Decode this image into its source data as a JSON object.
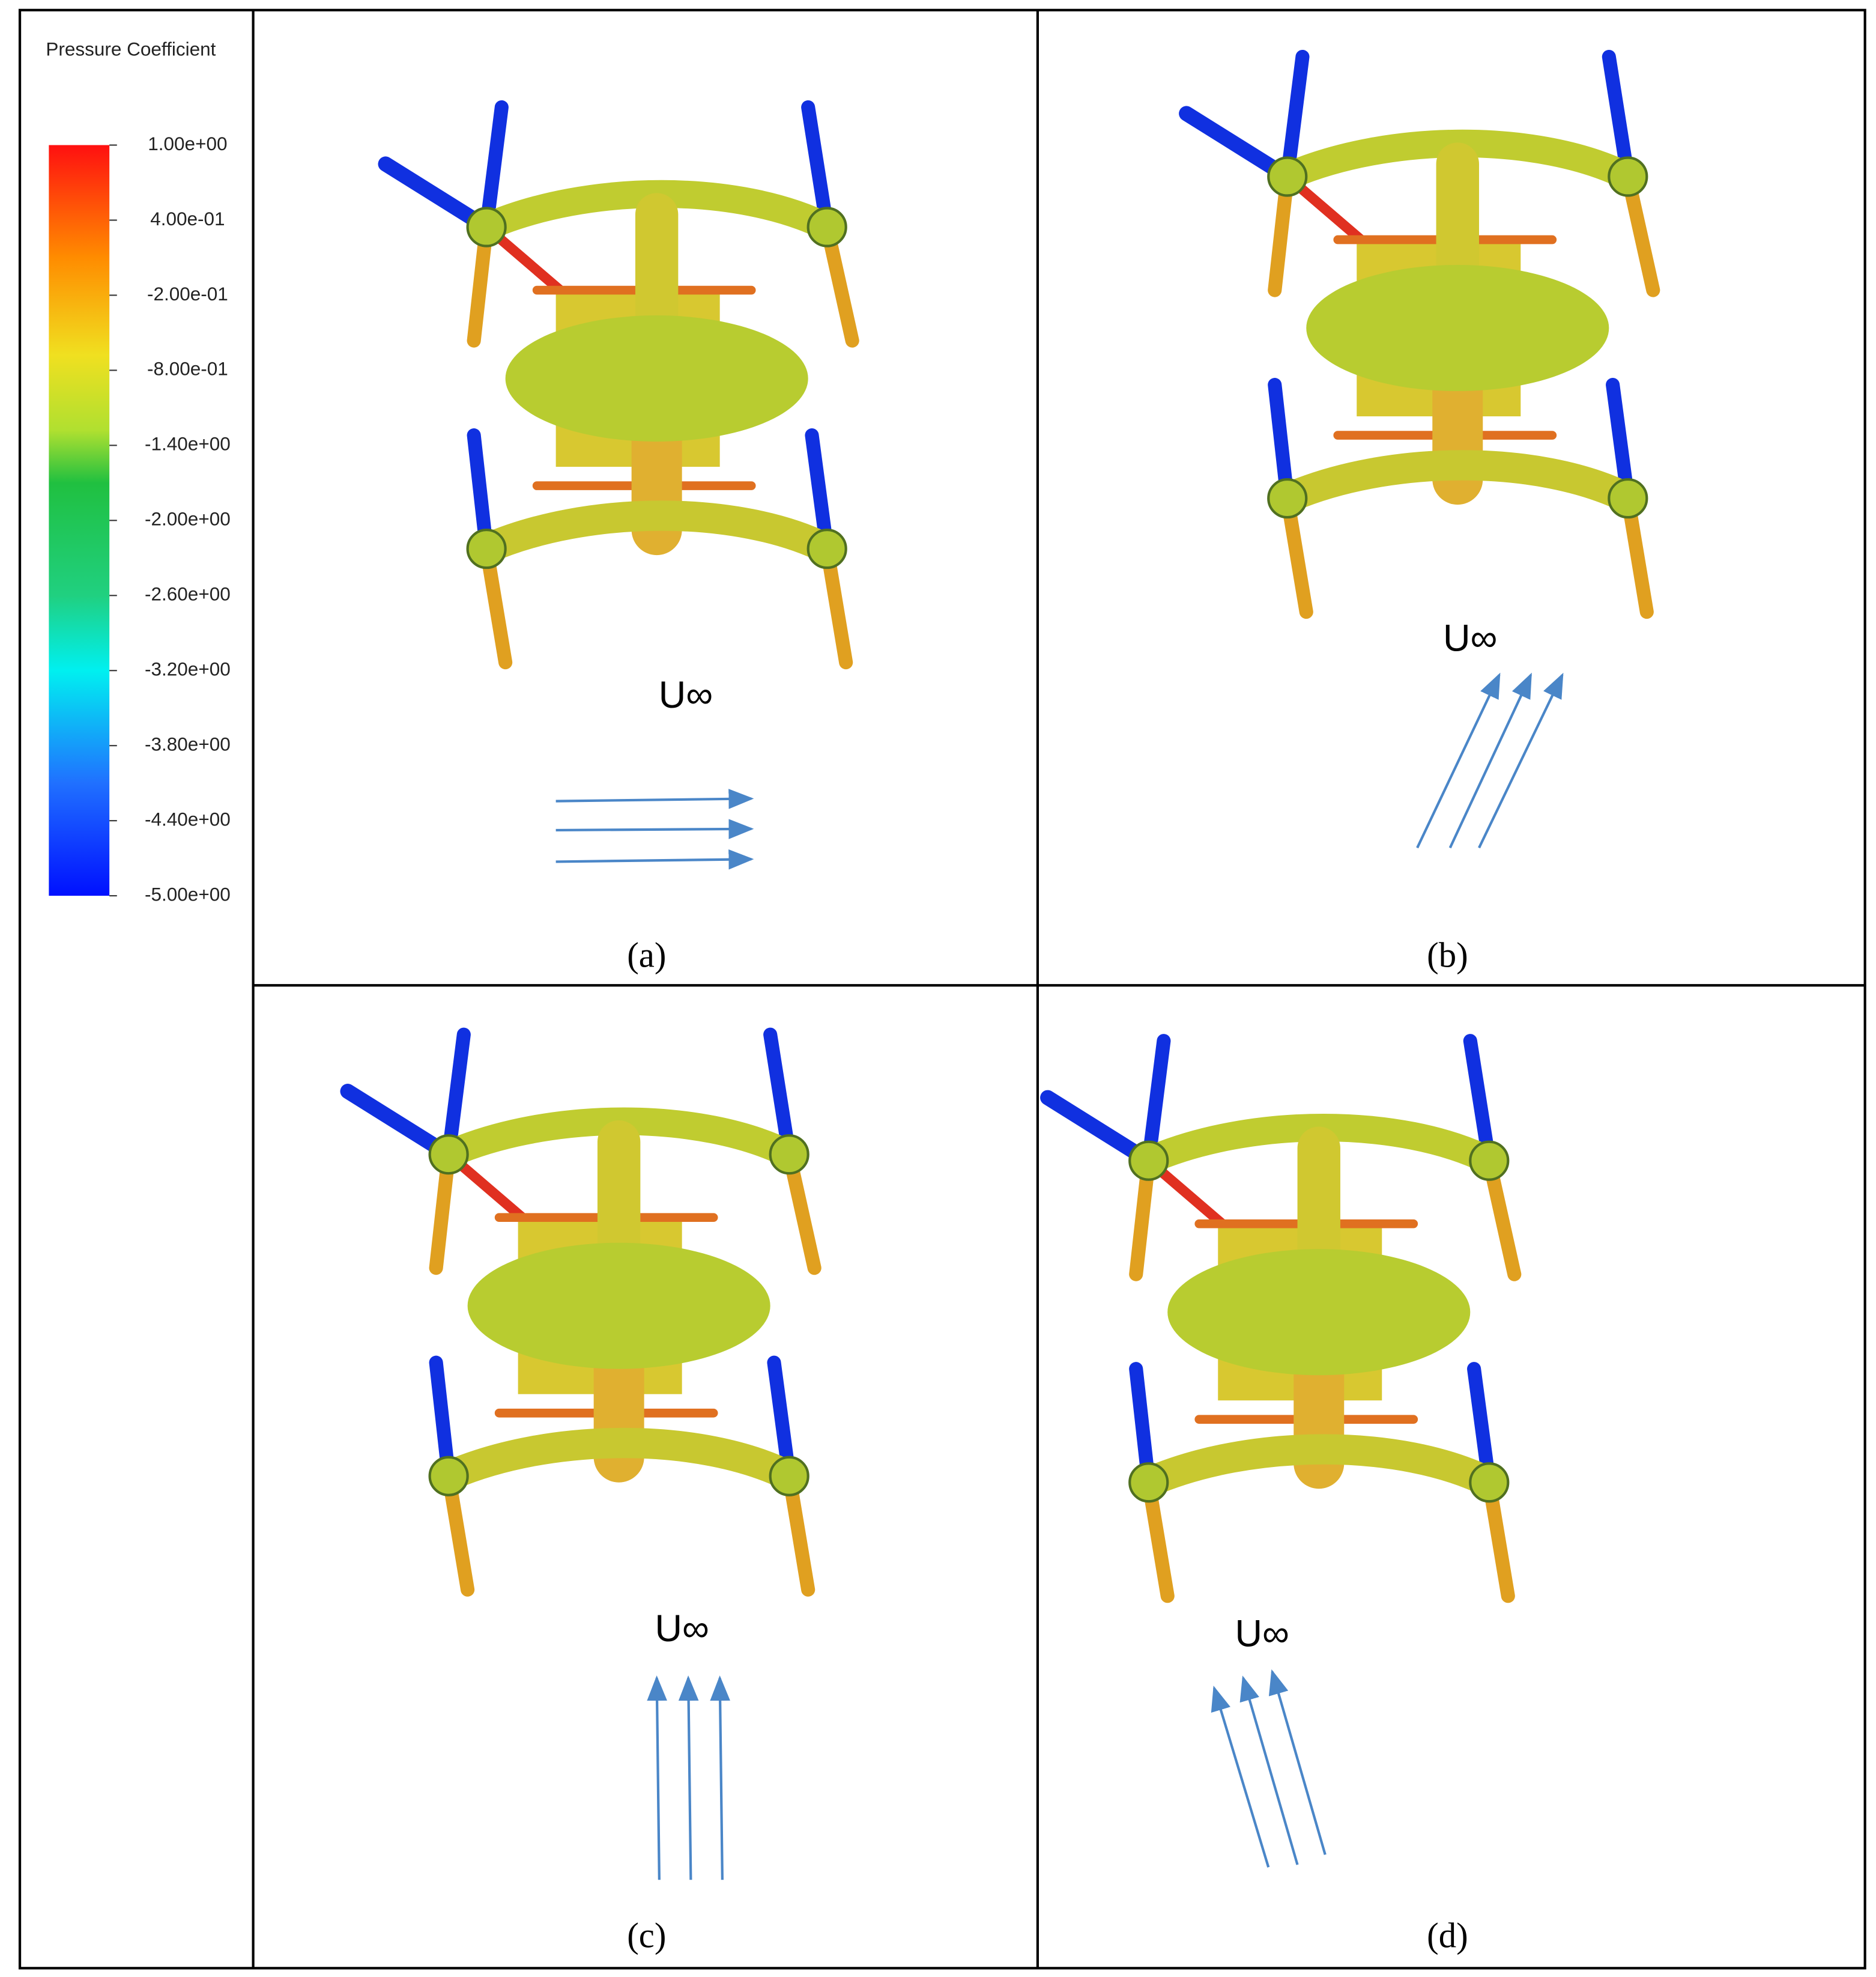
{
  "legend": {
    "title": "Pressure Coefficient",
    "range": [
      -5,
      1
    ],
    "ticks": [
      {
        "value": 1,
        "label": "1.00e+00"
      },
      {
        "value": 0.4,
        "label": "4.00e-01"
      },
      {
        "value": -0.2,
        "label": "-2.00e-01"
      },
      {
        "value": -0.8,
        "label": "-8.00e-01"
      },
      {
        "value": -1.4,
        "label": "-1.40e+00"
      },
      {
        "value": -2,
        "label": "-2.00e+00"
      },
      {
        "value": -2.6,
        "label": "-2.60e+00"
      },
      {
        "value": -3.2,
        "label": "-3.20e+00"
      },
      {
        "value": -3.8,
        "label": "-3.80e+00"
      },
      {
        "value": -4.4,
        "label": "-4.40e+00"
      },
      {
        "value": -5,
        "label": "-5.00e+00"
      }
    ]
  },
  "panels": [
    {
      "label": "(a)",
      "flow_label": "U∞"
    },
    {
      "label": "(b)",
      "flow_label": "U∞"
    },
    {
      "label": "(c)",
      "flow_label": "U∞"
    },
    {
      "label": "(d)",
      "flow_label": "U∞"
    }
  ]
}
